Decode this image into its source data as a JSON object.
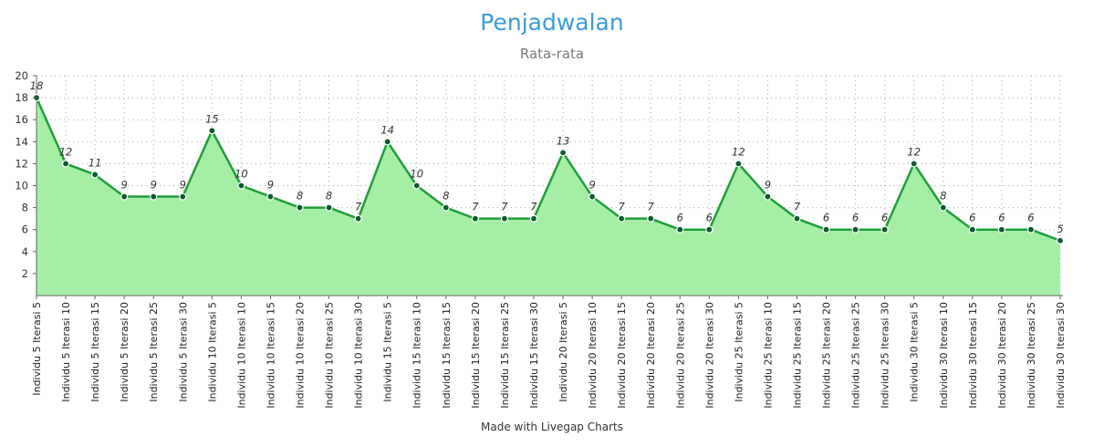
{
  "title": "Penjadwalan",
  "subtitle": "Rata-rata",
  "footer": "Made with Livegap Charts",
  "colors": {
    "title": "#3a9bd9",
    "line": "#1f9e3a",
    "fill": "#a6eea6",
    "point": "#0d5a30",
    "grid": "#a8a8a8"
  },
  "chart_data": {
    "type": "area",
    "title": "Penjadwalan",
    "subtitle": "Rata-rata",
    "xlabel": "",
    "ylabel": "",
    "ylim": [
      0,
      20
    ],
    "yticks": [
      2,
      4,
      6,
      8,
      10,
      12,
      14,
      16,
      18,
      20
    ],
    "grid": true,
    "legend": "none",
    "categories": [
      "Individu 5 Iterasi 5",
      "Individu 5 Iterasi 10",
      "Individu 5 Iterasi 15",
      "Individu 5 Iterasi 20",
      "Individu 5 Iterasi 25",
      "Individu 5 Iterasi 30",
      "Individu 10 Iterasi 5",
      "Individu 10 Iterasi 10",
      "Individu 10 Iterasi 15",
      "Individu 10 Iterasi 20",
      "Individu 10 Iterasi 25",
      "Individu 10 Iterasi 30",
      "Individu 15 Iterasi 5",
      "Individu 15 Iterasi 10",
      "Individu 15 Iterasi 15",
      "Individu 15 Iterasi 20",
      "Individu 15 Iterasi 25",
      "Individu 15 Iterasi 30",
      "Individu 20 Iterasi 5",
      "Individu 20 Iterasi 10",
      "Individu 20 Iterasi 15",
      "Individu 20 Iterasi 20",
      "Individu 20 Iterasi 25",
      "Individu 20 Iterasi 30",
      "Individu 25 Iterasi 5",
      "Individu 25 Iterasi 10",
      "Individu 25 Iterasi 15",
      "Individu 25 Iterasi 20",
      "Individu 25 Iterasi 25",
      "Individu 25 Iterasi 30",
      "Individu 30 Iterasi 5",
      "Individu 30 Iterasi 10",
      "Individu 30 Iterasi 15",
      "Individu 30 Iterasi 20",
      "Individu 30 Iterasi 25",
      "Individu 30 Iterasi 30"
    ],
    "series": [
      {
        "values": [
          18,
          12,
          11,
          9,
          9,
          9,
          15,
          10,
          9,
          8,
          8,
          7,
          14,
          10,
          8,
          7,
          7,
          7,
          13,
          9,
          7,
          7,
          6,
          6,
          12,
          9,
          7,
          6,
          6,
          6,
          12,
          8,
          6,
          6,
          6,
          5
        ]
      }
    ]
  }
}
